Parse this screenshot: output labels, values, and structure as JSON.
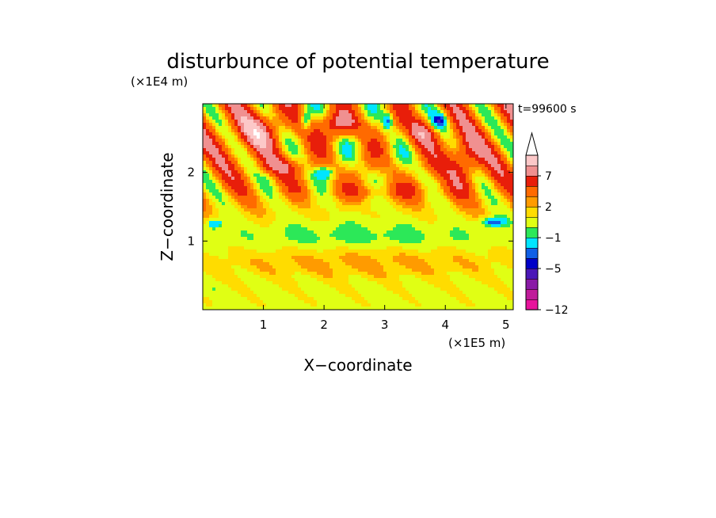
{
  "chart_data": {
    "type": "heatmap",
    "title": "disturbunce of potential temperature",
    "xlabel": "X−coordinate",
    "ylabel": "Z−coordinate",
    "x_unit": "(×1E5 m)",
    "y_unit": "(×1E4 m)",
    "time_label": "t=99600 s",
    "x_ticks": [
      "1",
      "2",
      "3",
      "4",
      "5"
    ],
    "y_ticks": [
      "1",
      "2"
    ],
    "xlim": [
      0,
      5.12
    ],
    "ylim": [
      0,
      3.0
    ],
    "colorbar": {
      "labels": [
        "7",
        "2",
        "−1",
        "−5",
        "−12"
      ],
      "label_levels": [
        7,
        2,
        -1,
        -5,
        -12
      ],
      "levels": [
        -12,
        -10,
        -8,
        -6,
        -5,
        -4,
        -3,
        -1,
        0,
        1,
        2,
        3,
        5,
        7,
        9,
        11
      ],
      "colors": [
        "#e8149c",
        "#c01b9a",
        "#8a1aa6",
        "#4b17b8",
        "#0000c8",
        "#0f5fe6",
        "#00e5ff",
        "#2ce858",
        "#e0ff14",
        "#ffdc00",
        "#ff9b00",
        "#ff6a00",
        "#e81e0a",
        "#f09090",
        "#fcc8c8",
        "#ffffff"
      ],
      "extend": "max"
    },
    "features": [
      {
        "x": 2.6,
        "z": 1.05,
        "value": -1.2,
        "sx": 2.3,
        "sz": 0.22
      },
      {
        "x": 2.6,
        "z": 0.7,
        "value": 1.8,
        "sx": 2.6,
        "sz": 0.25
      },
      {
        "x": 3.0,
        "z": 1.72,
        "value": 2.3,
        "sx": 1.0,
        "sz": 0.12
      },
      {
        "x": 2.3,
        "z": 2.7,
        "value": 5.5,
        "sx": 0.35,
        "sz": 0.18
      },
      {
        "x": 3.6,
        "z": 2.6,
        "value": 4.5,
        "sx": 0.25,
        "sz": 0.2
      },
      {
        "x": 0.9,
        "z": 2.6,
        "value": 4.0,
        "sx": 0.45,
        "sz": 0.3
      },
      {
        "x": 1.7,
        "z": 2.75,
        "value": -5.0,
        "sx": 0.08,
        "sz": 0.14
      },
      {
        "x": 3.05,
        "z": 2.75,
        "value": -5.0,
        "sx": 0.08,
        "sz": 0.12
      },
      {
        "x": 3.9,
        "z": 2.75,
        "value": -5.5,
        "sx": 0.14,
        "sz": 0.12
      },
      {
        "x": 2.0,
        "z": 2.0,
        "value": -4.5,
        "sx": 0.15,
        "sz": 0.08
      },
      {
        "x": 0.2,
        "z": 1.25,
        "value": -5.0,
        "sx": 0.1,
        "sz": 0.06
      },
      {
        "x": 4.8,
        "z": 1.28,
        "value": -5.0,
        "sx": 0.2,
        "sz": 0.06
      },
      {
        "x": 4.3,
        "z": 2.2,
        "value": 5.0,
        "sx": 0.25,
        "sz": 0.35
      },
      {
        "x": 1.3,
        "z": 2.1,
        "value": 3.0,
        "sx": 0.4,
        "sz": 0.12
      }
    ]
  }
}
